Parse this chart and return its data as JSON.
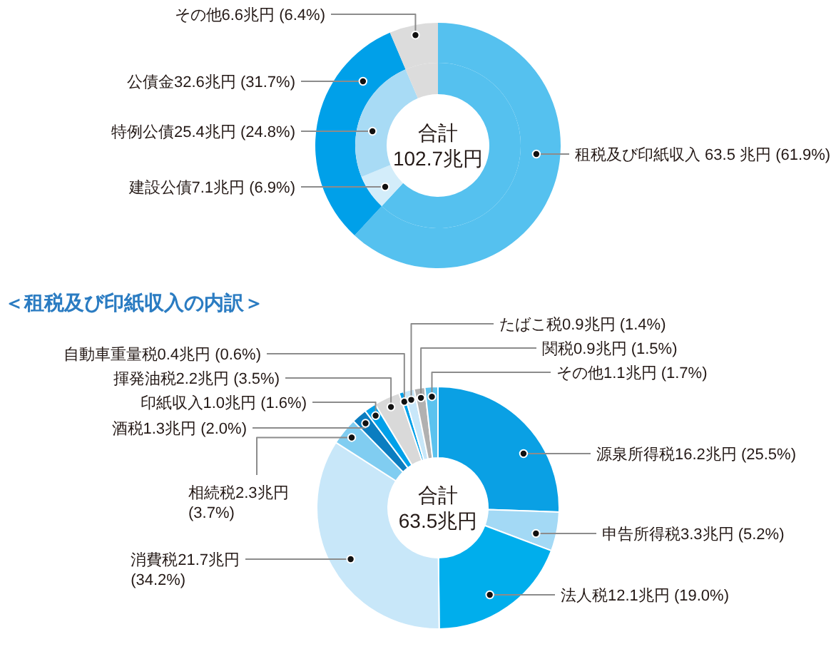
{
  "chart_data": [
    {
      "type": "donut",
      "categories": [
        "租税及び印紙収入 63.5 兆円 (61.9%)",
        "公債金32.6兆円 (31.7%)",
        "その他6.6兆円 (6.4%)"
      ],
      "values": [
        61.9,
        31.7,
        6.4
      ],
      "colors": [
        "#55c1ef",
        "#00a0e9",
        "#dcdcdc"
      ]
    },
    {
      "type": "donut",
      "annotations": [
        "合計",
        "102.7兆円"
      ],
      "categories": [
        null,
        "建設公債7.1兆円 (6.9%)",
        "特例公債25.4兆円 (24.8%)",
        null
      ],
      "values": [
        61.9,
        6.9,
        24.8,
        6.4
      ],
      "colors": [
        "#55c1ef",
        "#d3edfa",
        "#a8dbf5",
        "#dcdcdc"
      ]
    },
    {
      "type": "donut",
      "title": "＜租税及び印紙収入の内訳＞",
      "annotations": [
        "合計",
        "63.5兆円"
      ],
      "categories": [
        "源泉所得税16.2兆円 (25.5%)",
        "申告所得税3.3兆円 (5.2%)",
        "法人税12.1兆円 (19.0%)",
        "消費税21.7兆円\n(34.2%)",
        "相続税2.3兆円\n(3.7%)",
        "酒税1.3兆円 (2.0%)",
        "印紙収入1.0兆円 (1.6%)",
        "揮発油税2.2兆円 (3.5%)",
        "自動車重量税0.4兆円 (0.6%)",
        "たばこ税0.9兆円 (1.4%)",
        "関税0.9兆円 (1.5%)",
        "その他1.1兆円 (1.7%)"
      ],
      "values": [
        16.2,
        3.3,
        12.1,
        21.7,
        2.3,
        1.3,
        1.0,
        2.2,
        0.4,
        0.9,
        0.9,
        1.1
      ],
      "colors": [
        "#0aa0e4",
        "#a3d9f5",
        "#00aeec",
        "#c8e7f9",
        "#80cdf1",
        "#0b7dc0",
        "#00a0e9",
        "#d9d9d9",
        "#00a0e9",
        "#c8e7f9",
        "#b1b1b1",
        "#5bc2ee"
      ]
    }
  ]
}
